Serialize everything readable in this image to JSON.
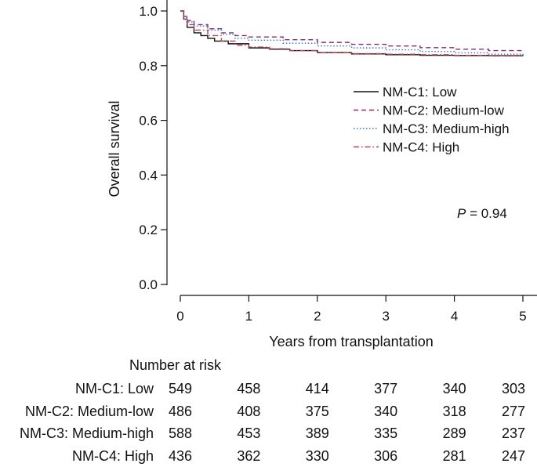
{
  "chart_data": {
    "type": "line",
    "xlabel": "Years from transplantation",
    "ylabel": "Overall survival",
    "xlim": [
      0,
      5
    ],
    "ylim": [
      0,
      1
    ],
    "x_ticks": [
      "0",
      "1",
      "2",
      "3",
      "4",
      "5"
    ],
    "y_ticks": [
      "0.0",
      "0.2",
      "0.4",
      "0.6",
      "0.8",
      "1.0"
    ],
    "legend_position": "right",
    "annotation": {
      "italic": "P",
      "text": " = 0.94"
    },
    "series": [
      {
        "name": "NM-C1: Low",
        "color": "#111111",
        "dash": "solid",
        "x": [
          0,
          0.05,
          0.1,
          0.2,
          0.3,
          0.4,
          0.5,
          0.7,
          1.0,
          1.3,
          1.6,
          2.0,
          2.5,
          3.0,
          3.5,
          4.0,
          4.5,
          5.0
        ],
        "y": [
          1.0,
          0.97,
          0.94,
          0.92,
          0.91,
          0.9,
          0.89,
          0.88,
          0.865,
          0.86,
          0.855,
          0.848,
          0.843,
          0.84,
          0.838,
          0.837,
          0.836,
          0.835
        ]
      },
      {
        "name": "NM-C2: Medium-low",
        "color": "#8a2a6e",
        "dash": "dashed",
        "x": [
          0,
          0.05,
          0.1,
          0.2,
          0.4,
          0.6,
          0.8,
          1.0,
          1.5,
          2.0,
          2.5,
          3.0,
          3.5,
          4.0,
          4.5,
          5.0
        ],
        "y": [
          1.0,
          0.98,
          0.965,
          0.95,
          0.935,
          0.92,
          0.91,
          0.905,
          0.895,
          0.885,
          0.878,
          0.872,
          0.866,
          0.86,
          0.855,
          0.852
        ]
      },
      {
        "name": "NM-C3: Medium-high",
        "color": "#2a7ab8",
        "dash": "dotted",
        "x": [
          0,
          0.05,
          0.1,
          0.2,
          0.4,
          0.6,
          0.8,
          1.0,
          1.5,
          2.0,
          2.5,
          3.0,
          3.5,
          4.0,
          4.5,
          5.0
        ],
        "y": [
          1.0,
          0.975,
          0.96,
          0.945,
          0.93,
          0.915,
          0.9,
          0.893,
          0.882,
          0.872,
          0.865,
          0.858,
          0.852,
          0.847,
          0.842,
          0.838
        ]
      },
      {
        "name": "NM-C4: High",
        "color": "#c0405a",
        "dash": "dashdot",
        "x": [
          0,
          0.05,
          0.1,
          0.2,
          0.4,
          0.6,
          0.8,
          1.0,
          1.3,
          1.6,
          2.0,
          2.5,
          3.0,
          3.5,
          4.0,
          4.5,
          5.0
        ],
        "y": [
          1.0,
          0.97,
          0.95,
          0.93,
          0.91,
          0.89,
          0.875,
          0.868,
          0.862,
          0.855,
          0.848,
          0.844,
          0.842,
          0.84,
          0.838,
          0.837,
          0.836
        ]
      }
    ]
  },
  "risk_table": {
    "title": "Number at risk",
    "rows": [
      {
        "label": "NM-C1: Low",
        "values": [
          "549",
          "458",
          "414",
          "377",
          "340",
          "303"
        ]
      },
      {
        "label": "NM-C2: Medium-low",
        "values": [
          "486",
          "408",
          "375",
          "340",
          "318",
          "277"
        ]
      },
      {
        "label": "NM-C3: Medium-high",
        "values": [
          "588",
          "453",
          "389",
          "335",
          "289",
          "237"
        ]
      },
      {
        "label": "NM-C4: High",
        "values": [
          "436",
          "362",
          "330",
          "306",
          "281",
          "247"
        ]
      }
    ]
  }
}
